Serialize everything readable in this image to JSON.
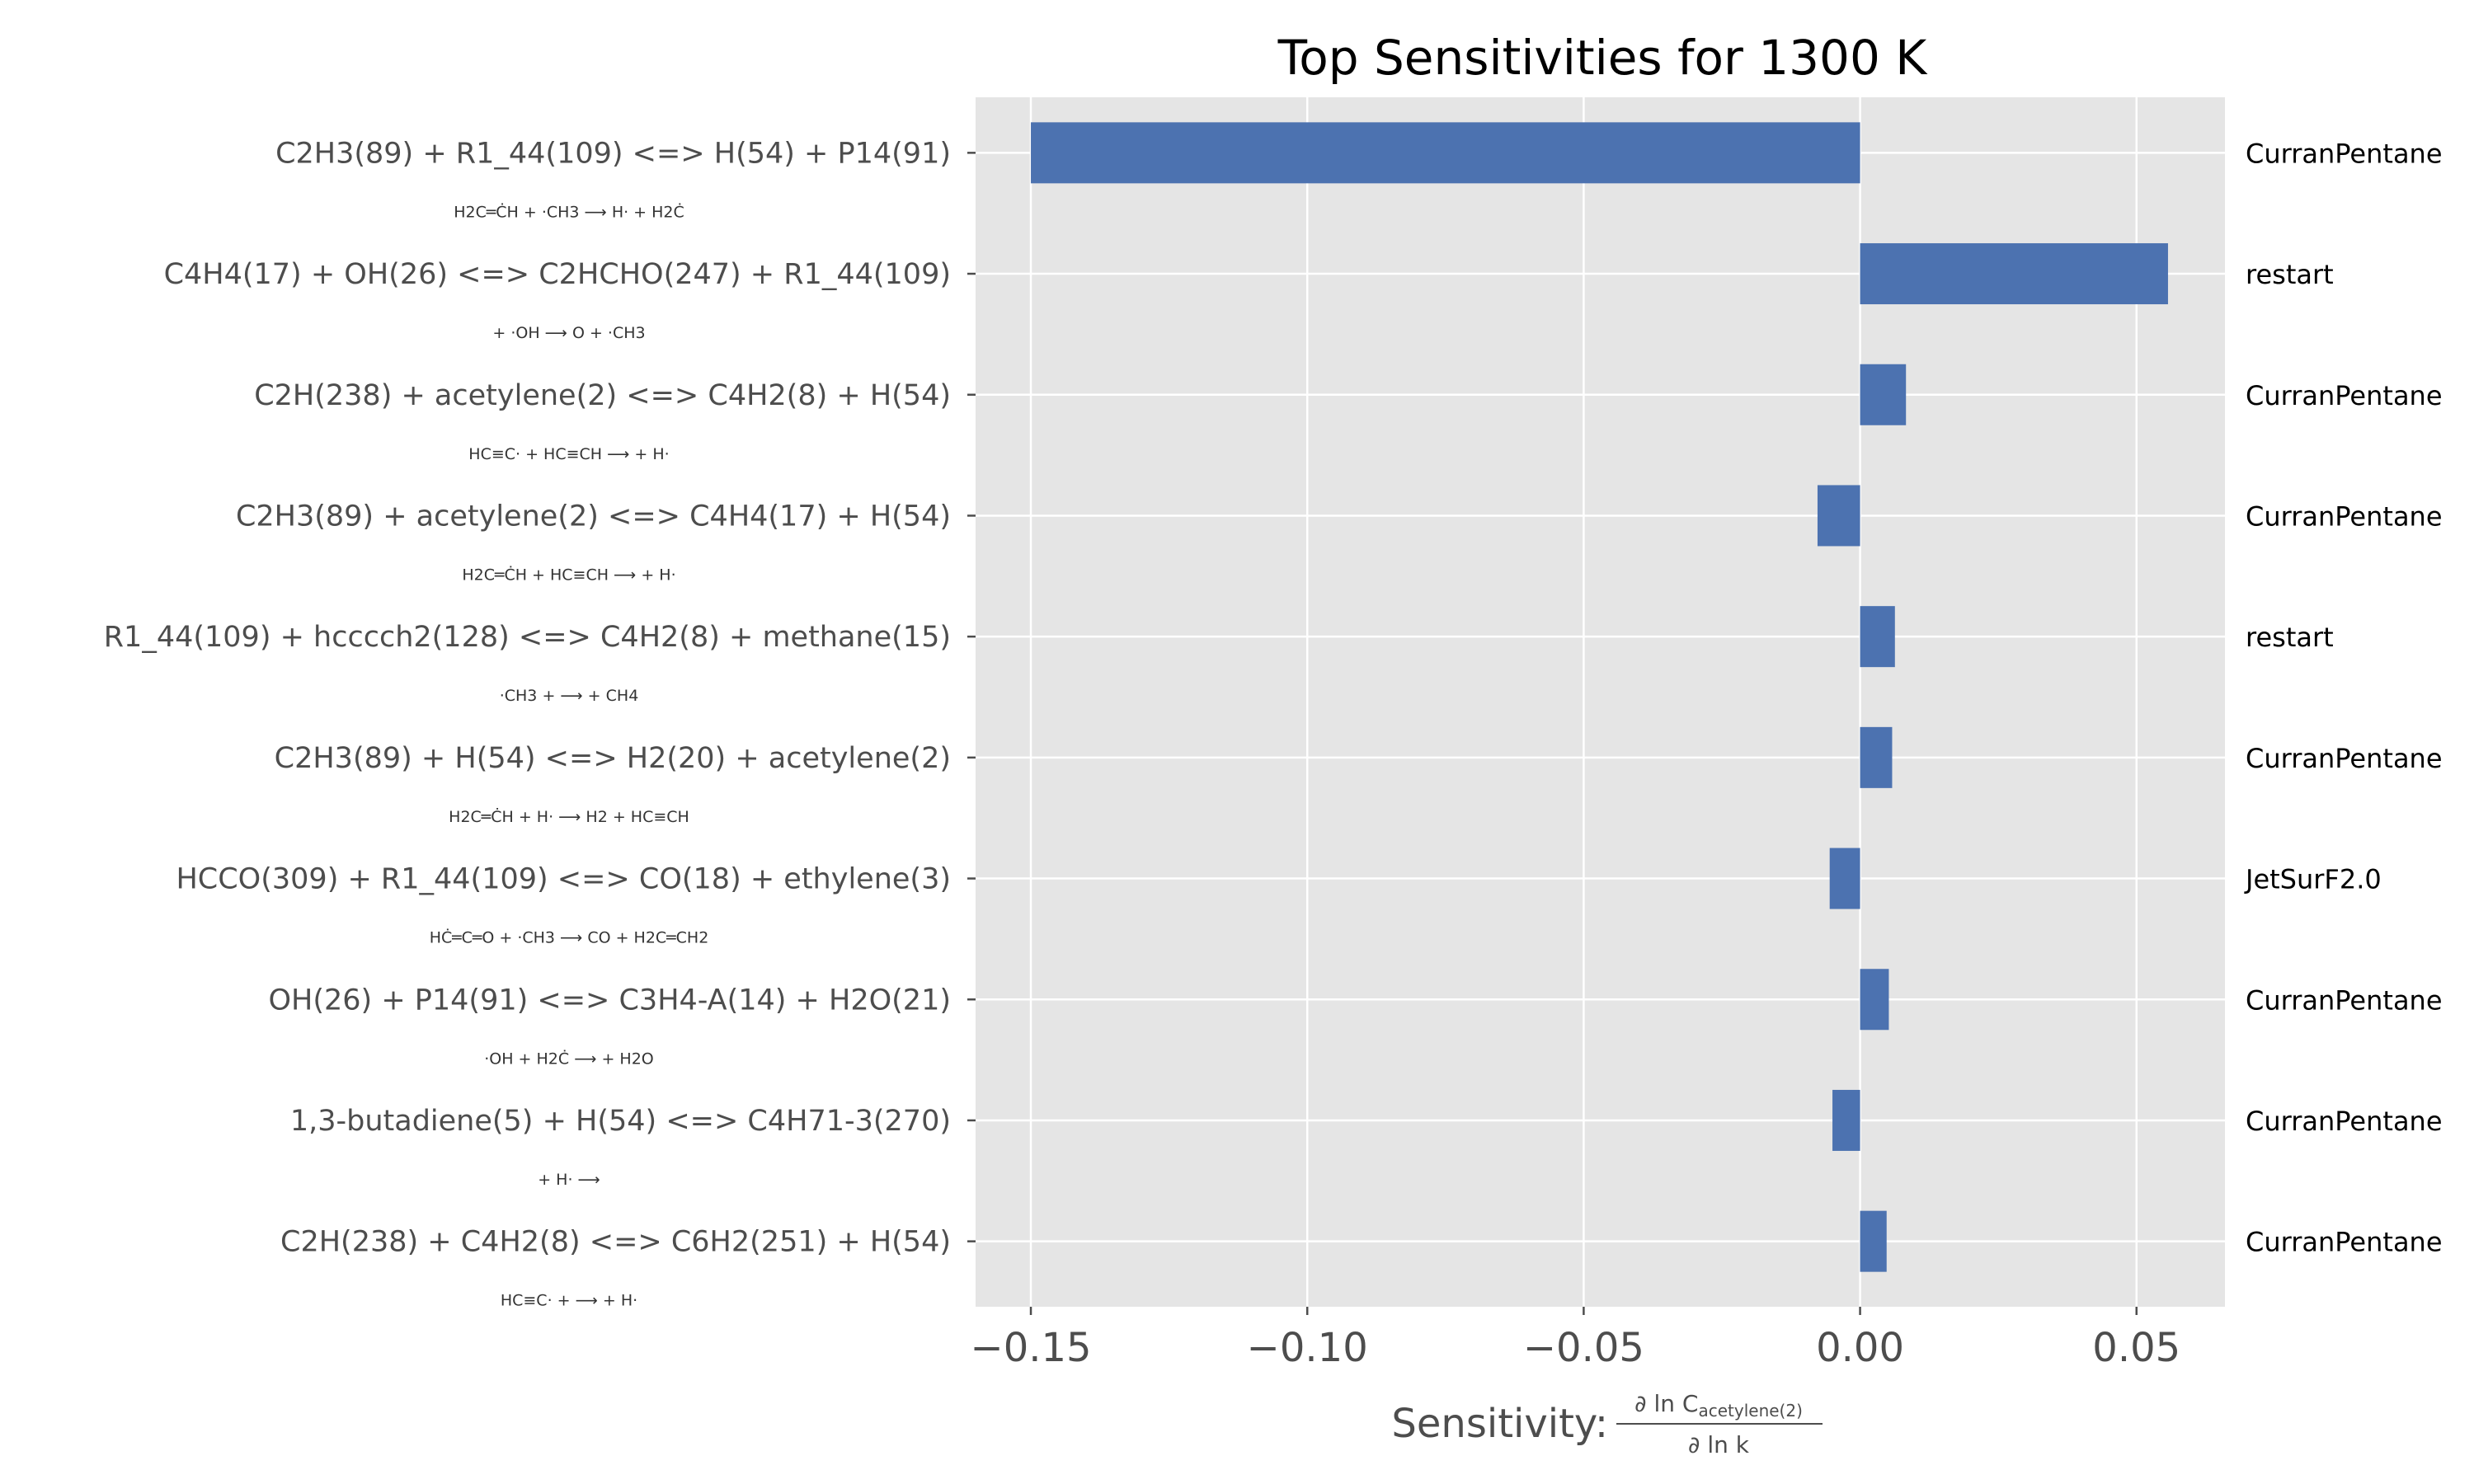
{
  "chart_data": {
    "type": "bar",
    "orientation": "horizontal",
    "title": "Top Sensitivities for 1300 K",
    "xlabel_prefix": "Sensitivity:",
    "xlabel_numerator": "∂ ln C",
    "xlabel_numerator_sub": "acetylene(2)",
    "xlabel_denominator": "∂ ln k",
    "xlim": [
      -0.16,
      0.066
    ],
    "xticks": [
      -0.15,
      -0.1,
      -0.05,
      0.0,
      0.05
    ],
    "xtick_labels": [
      "−0.15",
      "−0.10",
      "−0.05",
      "0.00",
      "0.05"
    ],
    "grid": true,
    "bar_color": "#4c72b0",
    "background_color": "#e5e5e5",
    "reactions": [
      {
        "label": "C2H3(89) + R1_44(109) <=> H(54) + P14(91)",
        "source": "CurranPentane",
        "value": -0.15,
        "structure": [
          "H",
          "₂",
          "C═ĊH + ·CH",
          "₃",
          " ⟶ H· + H",
          "₂",
          "Ċ"
        ],
        "structure_text": "H2C═ĊH + ·CH3 ⟶ H· + H2Ċ",
        "structure_red": ""
      },
      {
        "label": "C4H4(17) + OH(26) <=> C2HCHO(247) + R1_44(109)",
        "source": "restart",
        "value": 0.0557,
        "structure_text": "+ ·OH ⟶ O + ·CH3",
        "structure_red": "OH"
      },
      {
        "label": "C2H(238) + acetylene(2) <=> C4H2(8) + H(54)",
        "source": "CurranPentane",
        "value": 0.0083,
        "structure_text": "HC≡C· + HC≡CH ⟶ + H·",
        "structure_red": ""
      },
      {
        "label": "C2H3(89) + acetylene(2) <=> C4H4(17) + H(54)",
        "source": "CurranPentane",
        "value": -0.0077,
        "structure_text": "H2C═ĊH + HC≡CH ⟶ + H·",
        "structure_red": ""
      },
      {
        "label": "R1_44(109) + hcccch2(128) <=> C4H2(8) + methane(15)",
        "source": "restart",
        "value": 0.0063,
        "structure_text": "·CH3 + ⟶ + CH4",
        "structure_red": ""
      },
      {
        "label": "C2H3(89) + H(54) <=> H2(20) + acetylene(2)",
        "source": "CurranPentane",
        "value": 0.0058,
        "structure_text": "H2C═ĊH + H· ⟶ H2 + HC≡CH",
        "structure_red": ""
      },
      {
        "label": "HCCO(309) + R1_44(109) <=> CO(18) + ethylene(3)",
        "source": "JetSurF2.0",
        "value": -0.0055,
        "structure_text": "HĊ═C═O + ·CH3 ⟶ CO + H2C═CH2",
        "structure_red": "O"
      },
      {
        "label": "OH(26) + P14(91) <=> C3H4-A(14) + H2O(21)",
        "source": "CurranPentane",
        "value": 0.0052,
        "structure_text": "·OH + H2Ċ ⟶ + H2O",
        "structure_red": "·OH;H2O"
      },
      {
        "label": "1,3-butadiene(5) + H(54) <=> C4H71-3(270)",
        "source": "CurranPentane",
        "value": -0.005,
        "structure_text": "+ H· ⟶",
        "structure_red": ""
      },
      {
        "label": "C2H(238) + C4H2(8) <=> C6H2(251) + H(54)",
        "source": "CurranPentane",
        "value": 0.0048,
        "structure_text": "HC≡C· + ⟶ + H·",
        "structure_red": ""
      }
    ]
  }
}
